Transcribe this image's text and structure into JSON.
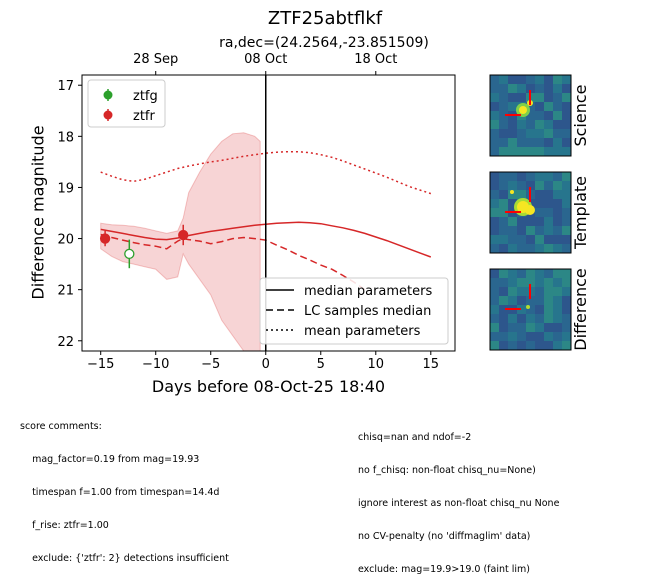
{
  "chart_data": {
    "type": "line",
    "title": "ZTF25abtflkf",
    "subtitle": "ra,dec=(24.2564,-23.851509)",
    "xlabel": "Days before 08-Oct-25 18:40",
    "ylabel": "Difference magnitude",
    "xlim": [
      -16.7,
      17.2
    ],
    "ylim": [
      22.2,
      16.8
    ],
    "y_inverted": true,
    "x_ticks": [
      "-15",
      "-10",
      "-5",
      "0",
      "5",
      "10",
      "15"
    ],
    "x_tick_values": [
      -15,
      -10,
      -5,
      0,
      5,
      10,
      15
    ],
    "y_ticks": [
      "17",
      "18",
      "19",
      "20",
      "21",
      "22"
    ],
    "y_tick_values": [
      17,
      18,
      19,
      20,
      21,
      22
    ],
    "top_axis_ticks": [
      "28 Sep",
      "08 Oct",
      "18 Oct"
    ],
    "top_axis_tick_values": [
      -10,
      0,
      10
    ],
    "vertical_line_x": 0,
    "legend_filters": [
      "ztfg",
      "ztfr"
    ],
    "legend_models": [
      "median parameters",
      "LC samples median",
      "mean parameters"
    ],
    "colors": {
      "ztfg": "#2ca02c",
      "ztfr": "#d62728",
      "band_fill": "#f2b8b9"
    },
    "points": [
      {
        "filter": "ztfr",
        "x": -14.6,
        "y": 20.0,
        "yerr": 0.15,
        "filled": true
      },
      {
        "filter": "ztfr",
        "x": -7.5,
        "y": 19.93,
        "yerr": 0.2,
        "filled": true
      },
      {
        "filter": "ztfg",
        "x": -12.4,
        "y": 20.3,
        "yerr": 0.28,
        "filled": false
      }
    ],
    "series": [
      {
        "name": "median parameters",
        "filter": "ztfr",
        "style": "solid",
        "x": [
          -15,
          -14,
          -13,
          -12,
          -11,
          -10,
          -9,
          -8,
          -7,
          -6,
          -5,
          -4,
          -3,
          -2,
          -1,
          0,
          1,
          2,
          3,
          4,
          5,
          6,
          7,
          8,
          9,
          10,
          11,
          12,
          13,
          14,
          15
        ],
        "y": [
          19.82,
          19.86,
          19.9,
          19.94,
          19.98,
          20.01,
          20.02,
          19.99,
          19.94,
          19.9,
          19.86,
          19.83,
          19.8,
          19.77,
          19.74,
          19.72,
          19.7,
          19.69,
          19.68,
          19.69,
          19.71,
          19.75,
          19.79,
          19.84,
          19.9,
          19.97,
          20.04,
          20.12,
          20.2,
          20.28,
          20.36
        ]
      },
      {
        "name": "LC samples median",
        "filter": "ztfr",
        "style": "dashed",
        "x": [
          -15,
          -14,
          -13,
          -12,
          -11,
          -10,
          -9,
          -8,
          -7.5,
          -7,
          -6,
          -5,
          -4,
          -3,
          -2,
          -1,
          0,
          1,
          2,
          3,
          4,
          5,
          6,
          7,
          8,
          9
        ],
        "y": [
          19.92,
          19.98,
          20.03,
          20.08,
          20.12,
          20.15,
          20.2,
          20.05,
          20.0,
          20.02,
          20.05,
          20.1,
          20.06,
          20.0,
          19.98,
          20.0,
          20.03,
          20.13,
          20.22,
          20.33,
          20.42,
          20.52,
          20.6,
          20.72,
          20.85,
          21.0
        ]
      },
      {
        "name": "mean parameters",
        "filter": "ztfr",
        "style": "dotted",
        "x": [
          -15,
          -14,
          -13,
          -12,
          -11,
          -10,
          -9,
          -8,
          -7,
          -6,
          -5,
          -4,
          -3,
          -2,
          -1,
          0,
          1,
          2,
          3,
          4,
          5,
          6,
          7,
          8,
          9,
          10,
          11,
          12,
          13,
          14,
          15
        ],
        "y": [
          18.7,
          18.78,
          18.85,
          18.88,
          18.84,
          18.77,
          18.7,
          18.63,
          18.58,
          18.54,
          18.5,
          18.47,
          18.43,
          18.39,
          18.36,
          18.33,
          18.31,
          18.3,
          18.3,
          18.32,
          18.36,
          18.41,
          18.48,
          18.56,
          18.64,
          18.72,
          18.8,
          18.89,
          18.98,
          19.05,
          19.12
        ]
      }
    ],
    "band": {
      "filter": "ztfr",
      "x": [
        -15,
        -14,
        -13,
        -12,
        -11,
        -10,
        -9,
        -8,
        -7.5,
        -7,
        -6,
        -5,
        -4,
        -3,
        -2,
        -1,
        -0.5
      ],
      "lower": [
        19.7,
        19.73,
        19.74,
        19.76,
        19.8,
        19.85,
        19.9,
        19.85,
        19.6,
        19.1,
        18.7,
        18.35,
        18.1,
        17.95,
        17.93,
        18.0,
        18.1
      ],
      "upper": [
        20.2,
        20.35,
        20.45,
        20.5,
        20.55,
        20.6,
        20.8,
        20.75,
        20.3,
        20.5,
        20.8,
        21.1,
        21.6,
        21.9,
        22.2,
        22.2,
        22.2
      ]
    }
  },
  "thumbnails": [
    {
      "label": "Science"
    },
    {
      "label": "Template"
    },
    {
      "label": "Difference"
    }
  ],
  "comments_left": [
    "score comments:",
    "    mag_factor=0.19 from mag=19.93",
    "    timespan f=1.00 from timespan=14.4d",
    "    f_rise: ztfr=1.00",
    "    exclude: {'ztfr': 2} detections insufficient"
  ],
  "comments_right": [
    "chisq=nan and ndof=-2",
    "no f_chisq: non-float chisq_nu=None)",
    "ignore interest as non-float chisq_nu None",
    "no CV-penalty (no 'diffmaglim' data)",
    "exclude: mag=19.9>19.0 (faint lim)"
  ]
}
